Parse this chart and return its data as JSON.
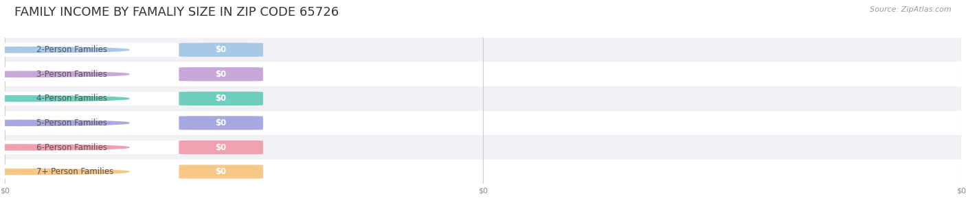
{
  "title": "FAMILY INCOME BY FAMALIY SIZE IN ZIP CODE 65726",
  "source": "Source: ZipAtlas.com",
  "categories": [
    "2-Person Families",
    "3-Person Families",
    "4-Person Families",
    "5-Person Families",
    "6-Person Families",
    "7+ Person Families"
  ],
  "values": [
    0,
    0,
    0,
    0,
    0,
    0
  ],
  "bar_colors": [
    "#a8c8e8",
    "#c8a8d8",
    "#6ecfbf",
    "#a8a8e0",
    "#f0a0b0",
    "#f5c888"
  ],
  "bg_color": "#ffffff",
  "row_bg_colors": [
    "#f0f0f5",
    "#ffffff"
  ],
  "title_fontsize": 13,
  "source_fontsize": 8,
  "label_fontsize": 8.5,
  "value_fontsize": 8.5,
  "xlabel_labels": [
    "$0",
    "$0",
    "$0"
  ]
}
